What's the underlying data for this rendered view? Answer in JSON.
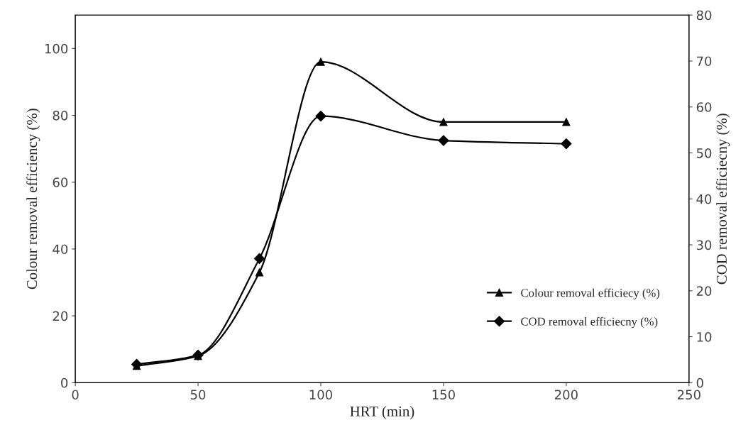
{
  "chart_data": {
    "type": "line",
    "xlabel": "HRT (min)",
    "ylabel": "Colour removal efficiency (%)",
    "y2label": "COD removal efficiecny (%)",
    "x": [
      25,
      50,
      75,
      100,
      150,
      200
    ],
    "series": [
      {
        "name": "Colour removal efficiecy (%)",
        "color": "#000000",
        "marker": "triangle",
        "values": [
          5,
          8,
          33,
          96,
          78,
          78
        ]
      },
      {
        "name": "COD removal efficiecny (%)",
        "color": "#000000",
        "marker": "diamond",
        "axis": "y2",
        "values": [
          4,
          6,
          27,
          58,
          52.7,
          52
        ]
      }
    ],
    "xlim": [
      0,
      250
    ],
    "xticks": [
      0,
      50,
      100,
      150,
      200,
      250
    ],
    "ylim": [
      0,
      110
    ],
    "yticks": [
      0,
      20,
      40,
      60,
      80,
      100
    ],
    "y2lim": [
      0,
      80
    ],
    "y2ticks": [
      0,
      10,
      20,
      30,
      40,
      50,
      60,
      70,
      80
    ],
    "grid": false,
    "legend": "bottom right",
    "line_style": "solid"
  }
}
